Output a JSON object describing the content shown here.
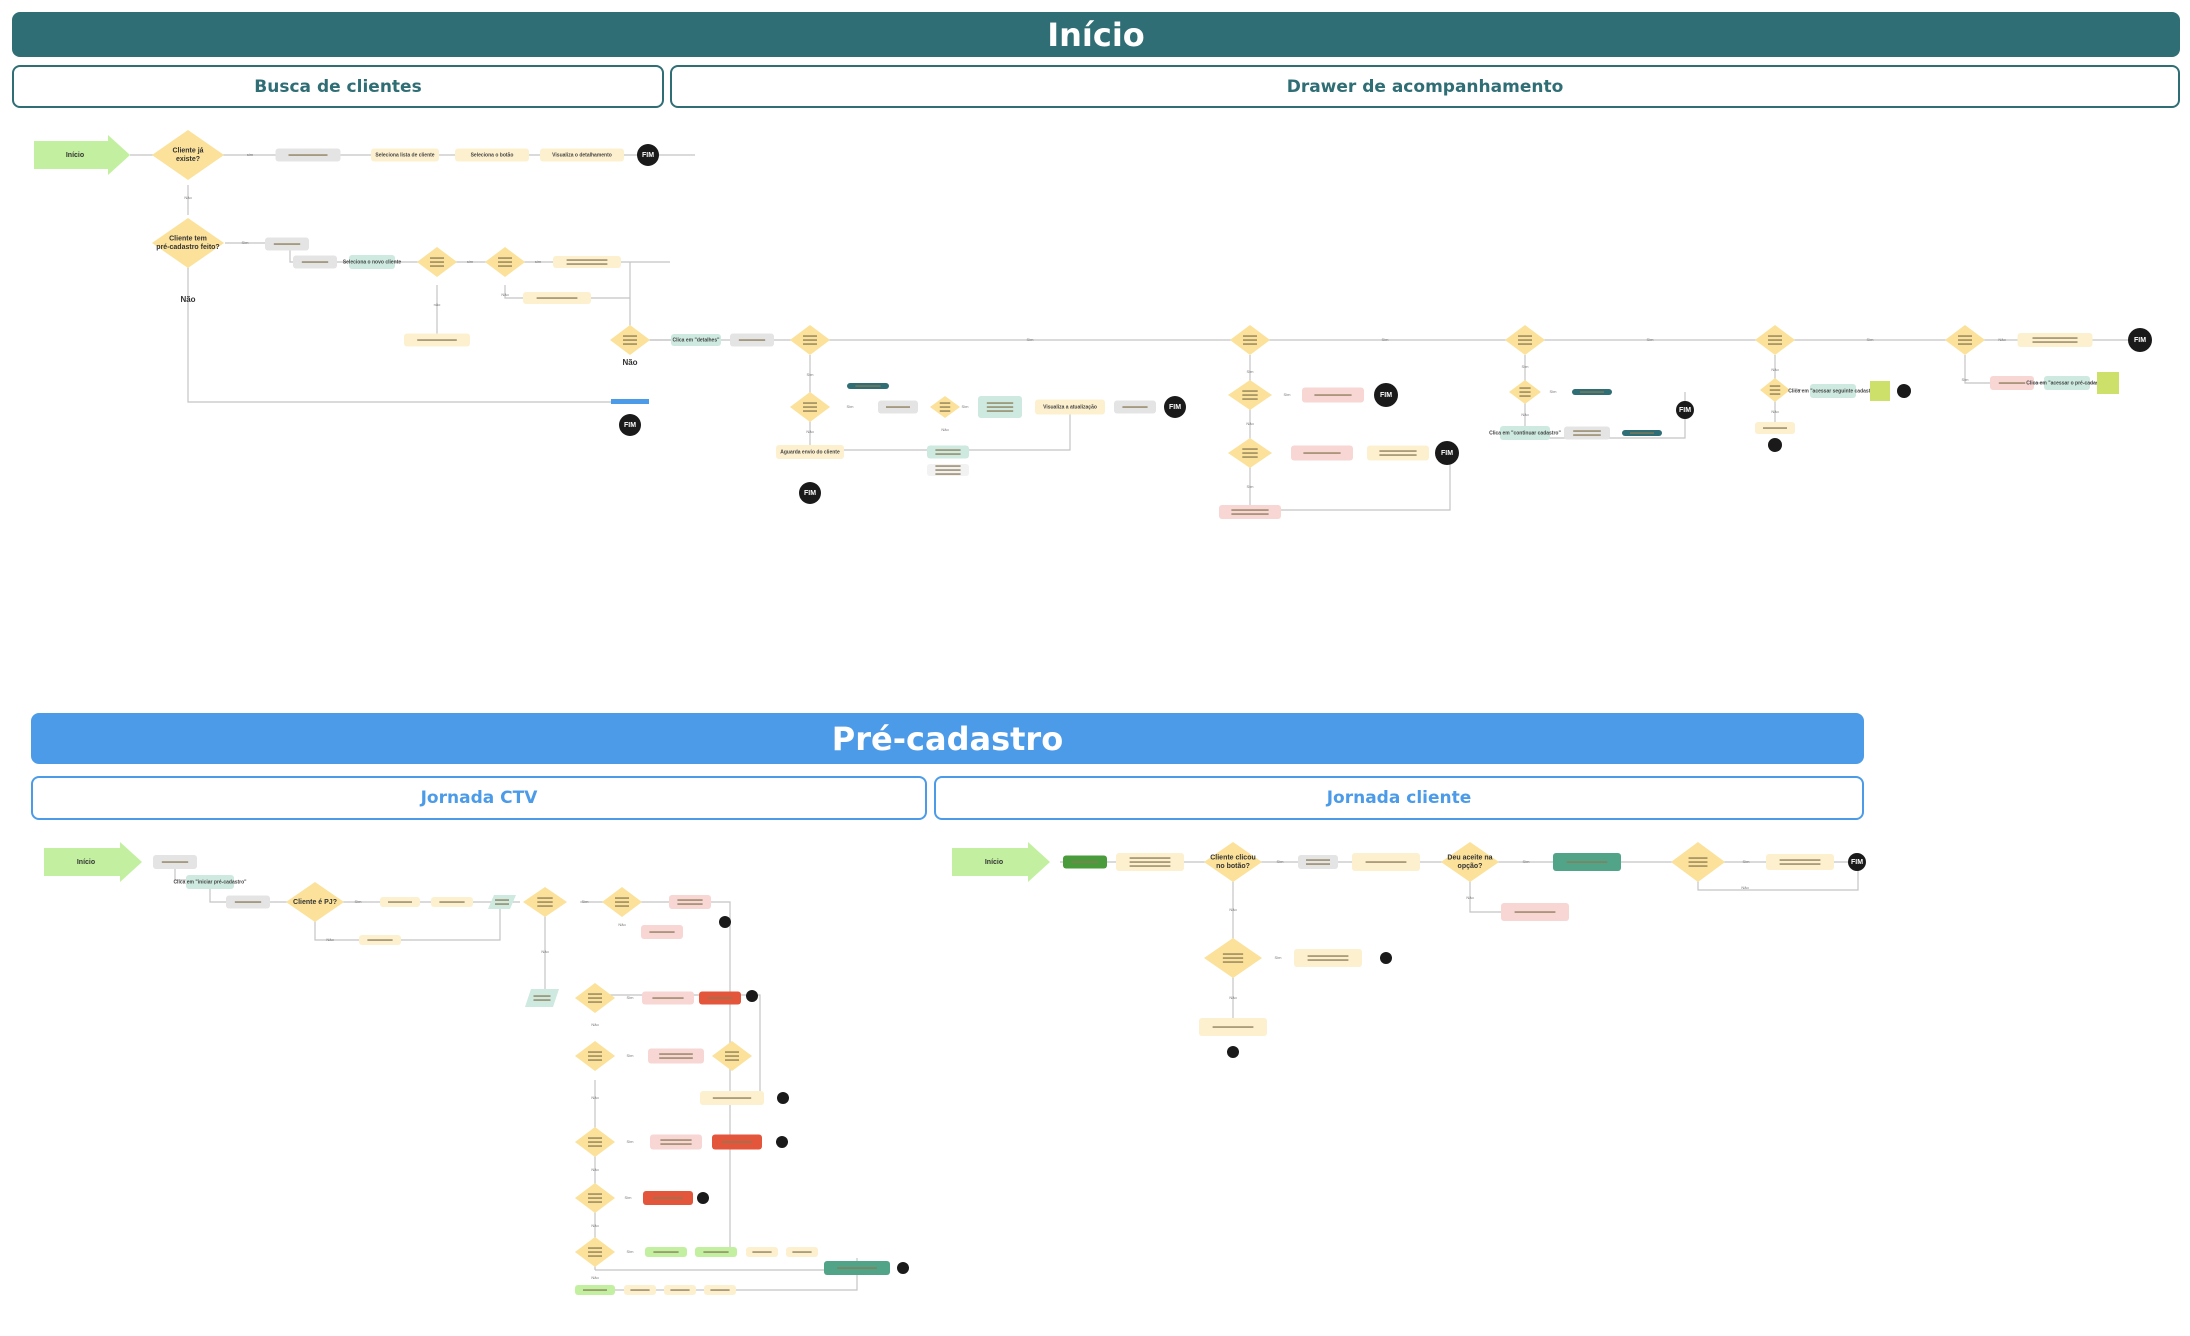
{
  "sections": {
    "inicio": {
      "title": "Início",
      "lanes": [
        "Busca de clientes",
        "Drawer de acompanhamento"
      ]
    },
    "pre_cadastro": {
      "title": "Pré-cadastro",
      "lanes": [
        "Jornada CTV",
        "Jornada cliente"
      ]
    }
  },
  "labels": {
    "inicio": "Início",
    "fim": "FIM",
    "nao": "Não",
    "cliente_ja_existe": "Cliente já existe?",
    "cliente_pre_cadastro": "Cliente tem pré-cadastro feito?",
    "exibe_lista": "Seleciona lista de cliente",
    "seleciona_botao": "Seleciona o botão",
    "visualiza_detalhamento": "Visualiza o detalhamento",
    "seleciona_novo_cliente": "Seleciona o novo cliente",
    "clica_detalhes": "Clica em \"detalhes\"",
    "aguarda_envio": "Aguarda envio do cliente",
    "visualiza_atualizacao": "Visualiza a atualização",
    "clica_continuar_cadastro": "Clica em \"continuar cadastro\"",
    "clica_acessar_seguinte": "Clica em \"acessar seguinte cadastro\"",
    "clica_acessar_pre": "Clica em \"acessar o pré-cadastro\"",
    "clica_iniciar_pre": "Clica em \"iniciar pré-cadastro\"",
    "cliente_e_pj": "Cliente é PJ?",
    "cliente_clicou": "Cliente clicou no botão?",
    "deu_aceite": "Deu aceite na opção?"
  },
  "colors": {
    "teal_banner": "#2f6e75",
    "blue_banner": "#4c9be8",
    "diamond": "#fbe19a",
    "process": "#fdf0cf",
    "arrow": "#c3f0a0",
    "end": "#1a1a1a"
  }
}
